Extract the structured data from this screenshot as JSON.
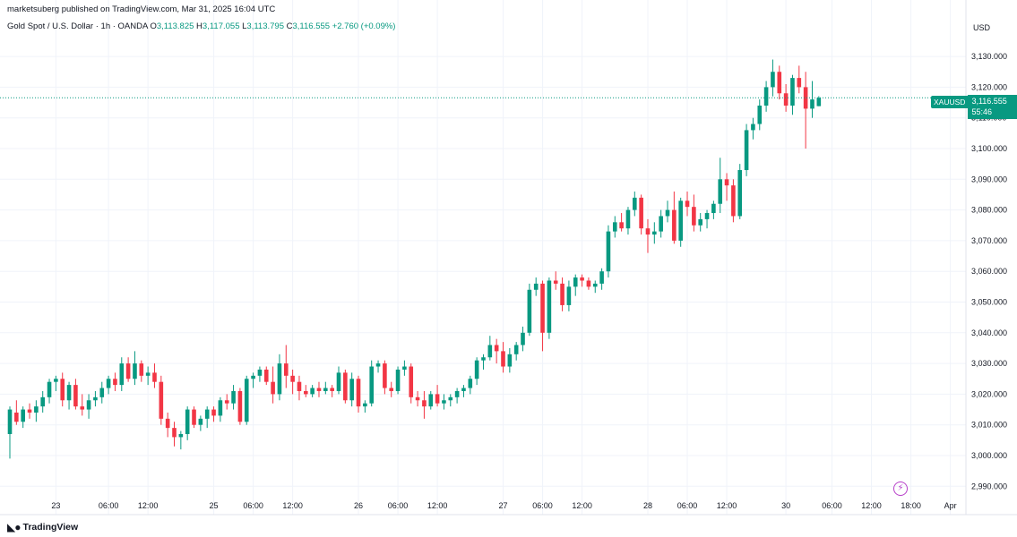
{
  "header": {
    "publisher": "marketsuberg published on TradingView.com, Mar 31, 2025 16:04 UTC",
    "instrument": "Gold Spot / U.S. Dollar · 1h · OANDA",
    "open_label": "O",
    "open": "3,113.825",
    "high_label": "H",
    "high": "3,117.055",
    "low_label": "L",
    "low": "3,113.795",
    "close_label": "C",
    "close": "3,116.555",
    "change": "+2.760 (+0.09%)"
  },
  "currency": "USD",
  "price_tag": {
    "symbol": "XAUUSD",
    "price": "3,116.555",
    "countdown": "55:46"
  },
  "logo_text": "TradingView",
  "colors": {
    "up": "#089981",
    "down": "#f23645",
    "grid": "#f0f3fa",
    "axis_text": "#131722"
  },
  "chart_data": {
    "type": "candlestick",
    "title": "Gold Spot / U.S. Dollar · 1h · OANDA",
    "ylabel": "USD",
    "ylim": [
      2985,
      3135
    ],
    "yticks": [
      2990,
      3000,
      3010,
      3020,
      3030,
      3040,
      3050,
      3060,
      3070,
      3080,
      3090,
      3100,
      3110,
      3120,
      3130
    ],
    "ytick_labels": [
      "2,990.000",
      "3,000.000",
      "3,010.000",
      "3,020.000",
      "3,030.000",
      "3,040.000",
      "3,050.000",
      "3,060.000",
      "3,070.000",
      "3,080.000",
      "3,090.000",
      "3,100.000",
      "3,110.000",
      "3,120.000",
      "3,130.000"
    ],
    "xlim": [
      0,
      148
    ],
    "xticks": [
      {
        "x": 7,
        "label": "23"
      },
      {
        "x": 15,
        "label": "06:00"
      },
      {
        "x": 21,
        "label": "12:00"
      },
      {
        "x": 31,
        "label": "25"
      },
      {
        "x": 37,
        "label": "06:00"
      },
      {
        "x": 43,
        "label": "12:00"
      },
      {
        "x": 53,
        "label": "26"
      },
      {
        "x": 59,
        "label": "06:00"
      },
      {
        "x": 65,
        "label": "12:00"
      },
      {
        "x": 75,
        "label": "27"
      },
      {
        "x": 81,
        "label": "06:00"
      },
      {
        "x": 87,
        "label": "12:00"
      },
      {
        "x": 97,
        "label": "28"
      },
      {
        "x": 103,
        "label": "06:00"
      },
      {
        "x": 109,
        "label": "12:00"
      },
      {
        "x": 118,
        "label": "30"
      },
      {
        "x": 125,
        "label": "06:00"
      },
      {
        "x": 131,
        "label": "12:00"
      },
      {
        "x": 137,
        "label": "18:00"
      },
      {
        "x": 143,
        "label": "Apr"
      }
    ],
    "last_price": 3116.555,
    "candles": [
      [
        3007,
        3016,
        2999,
        3015
      ],
      [
        3014,
        3018,
        3010,
        3011
      ],
      [
        3011,
        3016,
        3009,
        3015
      ],
      [
        3015,
        3017,
        3012,
        3014
      ],
      [
        3014,
        3018,
        3011,
        3016
      ],
      [
        3016,
        3021,
        3014,
        3019
      ],
      [
        3019,
        3025,
        3017,
        3024
      ],
      [
        3024,
        3026,
        3021,
        3025
      ],
      [
        3025,
        3027,
        3016,
        3018
      ],
      [
        3018,
        3024,
        3015,
        3023
      ],
      [
        3023,
        3025,
        3015,
        3016
      ],
      [
        3016,
        3020,
        3013,
        3015
      ],
      [
        3015,
        3020,
        3012,
        3018
      ],
      [
        3018,
        3021,
        3016,
        3019
      ],
      [
        3019,
        3024,
        3017,
        3022
      ],
      [
        3022,
        3026,
        3020,
        3025
      ],
      [
        3025,
        3027,
        3021,
        3023
      ],
      [
        3023,
        3032,
        3021,
        3030
      ],
      [
        3030,
        3032,
        3024,
        3025
      ],
      [
        3025,
        3034,
        3023,
        3030
      ],
      [
        3030,
        3031,
        3024,
        3026
      ],
      [
        3026,
        3029,
        3023,
        3027
      ],
      [
        3027,
        3030,
        3022,
        3024
      ],
      [
        3024,
        3026,
        3010,
        3012
      ],
      [
        3012,
        3014,
        3006,
        3009
      ],
      [
        3009,
        3011,
        3003,
        3006
      ],
      [
        3006,
        3008,
        3002,
        3007
      ],
      [
        3007,
        3016,
        3005,
        3015
      ],
      [
        3015,
        3016,
        3009,
        3010
      ],
      [
        3010,
        3013,
        3008,
        3012
      ],
      [
        3012,
        3016,
        3009,
        3015
      ],
      [
        3015,
        3016,
        3011,
        3013
      ],
      [
        3013,
        3019,
        3011,
        3018
      ],
      [
        3018,
        3020,
        3015,
        3017
      ],
      [
        3017,
        3023,
        3015,
        3021
      ],
      [
        3021,
        3022,
        3010,
        3011
      ],
      [
        3011,
        3026,
        3010,
        3025
      ],
      [
        3025,
        3027,
        3022,
        3026
      ],
      [
        3026,
        3029,
        3024,
        3028
      ],
      [
        3028,
        3029,
        3023,
        3024
      ],
      [
        3024,
        3029,
        3017,
        3020
      ],
      [
        3020,
        3033,
        3018,
        3030
      ],
      [
        3030,
        3036,
        3022,
        3026
      ],
      [
        3026,
        3028,
        3020,
        3024
      ],
      [
        3024,
        3026,
        3018,
        3021
      ],
      [
        3021,
        3023,
        3019,
        3020
      ],
      [
        3020,
        3023,
        3019,
        3022
      ],
      [
        3022,
        3024,
        3019,
        3021
      ],
      [
        3021,
        3024,
        3020,
        3022
      ],
      [
        3022,
        3023,
        3019,
        3021
      ],
      [
        3021,
        3029,
        3020,
        3027
      ],
      [
        3027,
        3028,
        3017,
        3018
      ],
      [
        3018,
        3027,
        3016,
        3025
      ],
      [
        3025,
        3026,
        3014,
        3016
      ],
      [
        3016,
        3018,
        3014,
        3017
      ],
      [
        3017,
        3031,
        3016,
        3029
      ],
      [
        3029,
        3031,
        3027,
        3030
      ],
      [
        3030,
        3031,
        3020,
        3022
      ],
      [
        3022,
        3024,
        3019,
        3021
      ],
      [
        3021,
        3029,
        3020,
        3028
      ],
      [
        3028,
        3031,
        3026,
        3029
      ],
      [
        3029,
        3030,
        3017,
        3019
      ],
      [
        3019,
        3021,
        3016,
        3018
      ],
      [
        3018,
        3021,
        3012,
        3016
      ],
      [
        3016,
        3021,
        3015,
        3020
      ],
      [
        3020,
        3023,
        3016,
        3017
      ],
      [
        3017,
        3020,
        3015,
        3018
      ],
      [
        3018,
        3020,
        3016,
        3019
      ],
      [
        3019,
        3022,
        3017,
        3021
      ],
      [
        3021,
        3023,
        3019,
        3022
      ],
      [
        3022,
        3026,
        3020,
        3025
      ],
      [
        3025,
        3032,
        3023,
        3031
      ],
      [
        3031,
        3033,
        3028,
        3032
      ],
      [
        3032,
        3039,
        3031,
        3036
      ],
      [
        3036,
        3038,
        3030,
        3034
      ],
      [
        3034,
        3037,
        3027,
        3029
      ],
      [
        3029,
        3035,
        3027,
        3033
      ],
      [
        3033,
        3037,
        3031,
        3036
      ],
      [
        3036,
        3042,
        3034,
        3040
      ],
      [
        3040,
        3056,
        3039,
        3054
      ],
      [
        3054,
        3058,
        3052,
        3056
      ],
      [
        3056,
        3057,
        3034,
        3040
      ],
      [
        3040,
        3058,
        3038,
        3057
      ],
      [
        3057,
        3060,
        3054,
        3056
      ],
      [
        3056,
        3058,
        3047,
        3049
      ],
      [
        3049,
        3057,
        3047,
        3055
      ],
      [
        3055,
        3059,
        3052,
        3058
      ],
      [
        3058,
        3059,
        3055,
        3057
      ],
      [
        3057,
        3058,
        3054,
        3055
      ],
      [
        3055,
        3057,
        3053,
        3056
      ],
      [
        3056,
        3061,
        3054,
        3060
      ],
      [
        3060,
        3075,
        3058,
        3073
      ],
      [
        3073,
        3078,
        3071,
        3076
      ],
      [
        3076,
        3079,
        3073,
        3074
      ],
      [
        3074,
        3081,
        3072,
        3080
      ],
      [
        3080,
        3086,
        3078,
        3084
      ],
      [
        3084,
        3085,
        3072,
        3074
      ],
      [
        3074,
        3077,
        3066,
        3072
      ],
      [
        3072,
        3076,
        3069,
        3073
      ],
      [
        3073,
        3080,
        3071,
        3078
      ],
      [
        3078,
        3083,
        3076,
        3080
      ],
      [
        3080,
        3086,
        3069,
        3070
      ],
      [
        3070,
        3084,
        3068,
        3083
      ],
      [
        3083,
        3086,
        3078,
        3081
      ],
      [
        3081,
        3085,
        3073,
        3075
      ],
      [
        3075,
        3079,
        3073,
        3077
      ],
      [
        3077,
        3080,
        3074,
        3079
      ],
      [
        3079,
        3083,
        3077,
        3082
      ],
      [
        3082,
        3097,
        3079,
        3090
      ],
      [
        3090,
        3092,
        3083,
        3088
      ],
      [
        3088,
        3090,
        3076,
        3078
      ],
      [
        3078,
        3095,
        3077,
        3093
      ],
      [
        3093,
        3108,
        3091,
        3106
      ],
      [
        3106,
        3110,
        3103,
        3108
      ],
      [
        3108,
        3116,
        3106,
        3114
      ],
      [
        3114,
        3122,
        3112,
        3120
      ],
      [
        3120,
        3129,
        3117,
        3125
      ],
      [
        3125,
        3127,
        3116,
        3118
      ],
      [
        3118,
        3121,
        3112,
        3114
      ],
      [
        3114,
        3124,
        3111,
        3123
      ],
      [
        3123,
        3127,
        3118,
        3120
      ],
      [
        3120,
        3125,
        3100,
        3113
      ],
      [
        3113,
        3122,
        3110,
        3116
      ],
      [
        3113.825,
        3117.055,
        3113.795,
        3116.555
      ]
    ]
  }
}
